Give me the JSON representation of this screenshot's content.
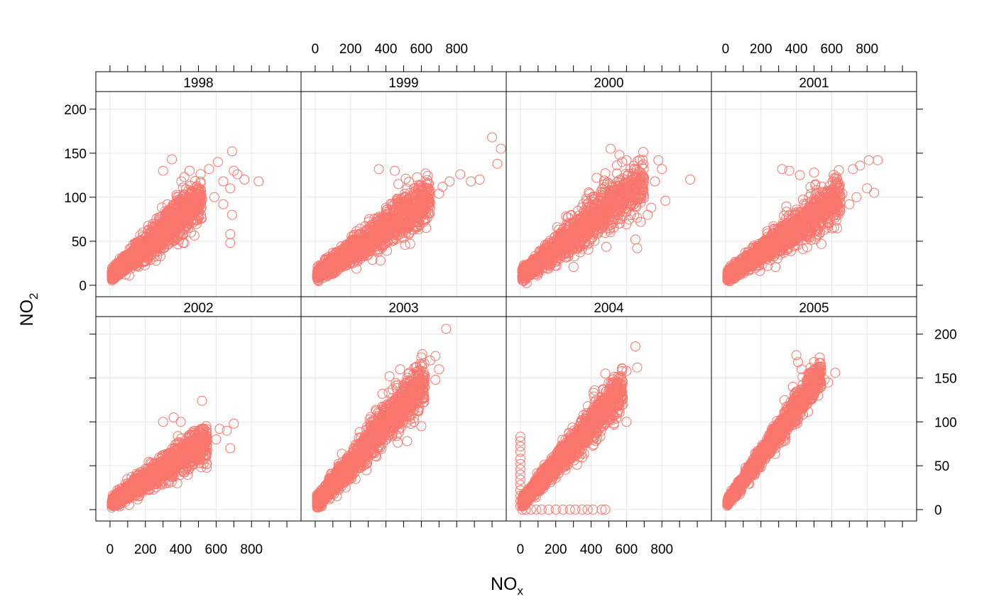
{
  "chart_data": {
    "type": "scatter",
    "layout": {
      "columns": 4,
      "rows": 2
    },
    "xlabel": "NO",
    "xlabel_sub": "x",
    "ylabel": "NO",
    "ylabel_sub": "2",
    "xlim": [
      -80,
      1080
    ],
    "ylim": [
      -13,
      220
    ],
    "x_ticks": [
      0,
      200,
      400,
      600,
      800
    ],
    "x_tick_marks": [
      0,
      100,
      200,
      300,
      400,
      500,
      600,
      700,
      800,
      900,
      1000
    ],
    "y_ticks": [
      0,
      50,
      100,
      150,
      200
    ],
    "grid": true,
    "marker": {
      "shape": "open-circle",
      "color": "#F8766D"
    },
    "panels": [
      {
        "label": "1998",
        "trend": {
          "x0": 10,
          "y0": 12,
          "x1": 400,
          "y1": 78,
          "xmax": 520,
          "spread_low": 22,
          "spread_high": 22
        },
        "outliers": [
          [
            690,
            152
          ],
          [
            610,
            140
          ],
          [
            560,
            132
          ],
          [
            700,
            130
          ],
          [
            720,
            126
          ],
          [
            640,
            118
          ],
          [
            760,
            120
          ],
          [
            840,
            118
          ],
          [
            680,
            110
          ],
          [
            590,
            100
          ],
          [
            640,
            92
          ],
          [
            690,
            80
          ],
          [
            680,
            58
          ],
          [
            680,
            48
          ],
          [
            350,
            143
          ],
          [
            300,
            130
          ],
          [
            450,
            130
          ],
          [
            420,
            123
          ]
        ]
      },
      {
        "label": "1999",
        "trend": {
          "x0": 10,
          "y0": 12,
          "x1": 450,
          "y1": 72,
          "xmax": 650,
          "spread_low": 20,
          "spread_high": 26
        },
        "outliers": [
          [
            1050,
            155
          ],
          [
            1000,
            168
          ],
          [
            1030,
            138
          ],
          [
            930,
            120
          ],
          [
            880,
            118
          ],
          [
            820,
            126
          ],
          [
            760,
            118
          ],
          [
            720,
            112
          ],
          [
            700,
            104
          ],
          [
            640,
            92
          ],
          [
            600,
            82
          ],
          [
            560,
            72
          ],
          [
            600,
            98
          ],
          [
            450,
            130
          ],
          [
            360,
            132
          ]
        ]
      },
      {
        "label": "2000",
        "trend": {
          "x0": 10,
          "y0": 12,
          "x1": 430,
          "y1": 78,
          "xmax": 700,
          "spread_low": 22,
          "spread_high": 28
        },
        "outliers": [
          [
            960,
            120
          ],
          [
            780,
            142
          ],
          [
            800,
            132
          ],
          [
            700,
            122
          ],
          [
            760,
            118
          ],
          [
            820,
            96
          ],
          [
            740,
            88
          ],
          [
            720,
            80
          ],
          [
            680,
            72
          ],
          [
            650,
            52
          ],
          [
            660,
            42
          ],
          [
            510,
            155
          ],
          [
            560,
            148
          ],
          [
            600,
            142
          ]
        ]
      },
      {
        "label": "2001",
        "trend": {
          "x0": 10,
          "y0": 10,
          "x1": 420,
          "y1": 68,
          "xmax": 650,
          "spread_low": 18,
          "spread_high": 24
        },
        "outliers": [
          [
            860,
            142
          ],
          [
            810,
            142
          ],
          [
            760,
            136
          ],
          [
            720,
            132
          ],
          [
            840,
            105
          ],
          [
            800,
            110
          ],
          [
            740,
            100
          ],
          [
            700,
            92
          ],
          [
            660,
            104
          ],
          [
            600,
            98
          ],
          [
            560,
            88
          ],
          [
            360,
            130
          ],
          [
            420,
            125
          ],
          [
            320,
            132
          ],
          [
            500,
            128
          ]
        ]
      },
      {
        "label": "2002",
        "trend": {
          "x0": 10,
          "y0": 8,
          "x1": 420,
          "y1": 62,
          "xmax": 550,
          "spread_low": 16,
          "spread_high": 20
        },
        "outliers": [
          [
            700,
            98
          ],
          [
            660,
            90
          ],
          [
            620,
            92
          ],
          [
            600,
            80
          ],
          [
            680,
            70
          ],
          [
            520,
            124
          ],
          [
            360,
            105
          ],
          [
            300,
            100
          ],
          [
            400,
            100
          ],
          [
            380,
            30
          ],
          [
            360,
            38
          ]
        ]
      },
      {
        "label": "2003",
        "trend": {
          "x0": 10,
          "y0": 8,
          "x1": 520,
          "y1": 125,
          "xmax": 620,
          "spread_low": 26,
          "spread_high": 24
        },
        "outliers": [
          [
            740,
            206
          ],
          [
            680,
            175
          ],
          [
            650,
            170
          ],
          [
            700,
            160
          ],
          [
            620,
            150
          ],
          [
            680,
            148
          ],
          [
            590,
            132
          ],
          [
            610,
            122
          ],
          [
            560,
            100
          ],
          [
            600,
            95
          ],
          [
            480,
            160
          ],
          [
            420,
            152
          ],
          [
            380,
            132
          ],
          [
            520,
            78
          ]
        ]
      },
      {
        "label": "2004",
        "trend": {
          "x0": 10,
          "y0": 8,
          "x1": 500,
          "y1": 120,
          "xmax": 580,
          "spread_low": 20,
          "spread_high": 20
        },
        "outliers": [
          [
            650,
            186
          ],
          [
            660,
            162
          ],
          [
            600,
            158
          ],
          [
            560,
            150
          ],
          [
            520,
            145
          ],
          [
            540,
            130
          ],
          [
            580,
            120
          ],
          [
            600,
            100
          ],
          [
            480,
            155
          ],
          [
            420,
            136
          ],
          [
            0,
            83
          ],
          [
            0,
            78
          ],
          [
            0,
            72
          ],
          [
            0,
            66
          ],
          [
            0,
            58
          ],
          [
            0,
            52
          ],
          [
            0,
            46
          ],
          [
            0,
            40
          ],
          [
            0,
            34
          ],
          [
            0,
            28
          ],
          [
            0,
            22
          ],
          [
            0,
            16
          ],
          [
            0,
            10
          ],
          [
            0,
            4
          ],
          [
            10,
            0
          ],
          [
            30,
            0
          ],
          [
            60,
            0
          ],
          [
            90,
            0
          ],
          [
            120,
            0
          ],
          [
            160,
            0
          ],
          [
            200,
            0
          ],
          [
            240,
            0
          ],
          [
            280,
            0
          ],
          [
            310,
            0
          ],
          [
            350,
            0
          ],
          [
            380,
            0
          ],
          [
            410,
            0
          ],
          [
            460,
            0
          ],
          [
            480,
            0
          ]
        ]
      },
      {
        "label": "2005",
        "trend": {
          "x0": 10,
          "y0": 8,
          "x1": 420,
          "y1": 122,
          "xmax": 540,
          "spread_low": 16,
          "spread_high": 14
        },
        "outliers": [
          [
            620,
            156
          ],
          [
            560,
            148
          ],
          [
            580,
            145
          ],
          [
            540,
            140
          ],
          [
            460,
            148
          ],
          [
            400,
            176
          ],
          [
            410,
            168
          ],
          [
            430,
            160
          ],
          [
            450,
            136
          ],
          [
            500,
            130
          ],
          [
            460,
            120
          ],
          [
            380,
            140
          ]
        ]
      }
    ]
  }
}
